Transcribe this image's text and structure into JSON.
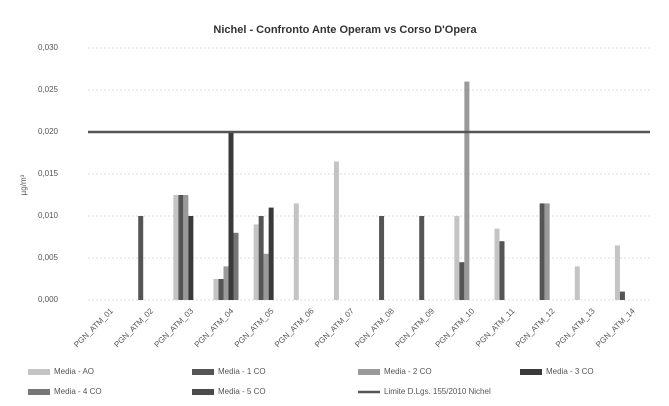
{
  "chart_data": {
    "type": "bar",
    "title": "Nichel - Confronto Ante Operam vs Corso D'Opera",
    "y_label": "µg/m³",
    "categories": [
      "PGN_ATM_01",
      "PGN_ATM_02",
      "PGN_ATM_03",
      "PGN_ATM_04",
      "PGN_ATM_05",
      "PGN_ATM_06",
      "PGN_ATM_07",
      "PGN_ATM_08",
      "PGN_ATM_09",
      "PGN_ATM_10",
      "PGN_ATM_11",
      "PGN_ATM_12",
      "PGN_ATM_13",
      "PGN_ATM_14"
    ],
    "series": [
      {
        "name": "Media - AO",
        "color": "#c4c4c4",
        "values": [
          null,
          null,
          0.0125,
          0.0025,
          0.009,
          0.0115,
          0.0165,
          null,
          null,
          0.01,
          0.0085,
          null,
          0.004,
          0.0065
        ]
      },
      {
        "name": "Media - 1 CO",
        "color": "#555555",
        "values": [
          null,
          0.01,
          0.0125,
          0.0025,
          0.01,
          null,
          null,
          0.01,
          0.01,
          0.0045,
          0.007,
          0.0115,
          null,
          0.001
        ]
      },
      {
        "name": "Media - 2 CO",
        "color": "#9a9a9a",
        "values": [
          null,
          null,
          0.0125,
          0.004,
          0.0055,
          null,
          null,
          null,
          null,
          0.026,
          null,
          0.0115,
          null,
          null
        ]
      },
      {
        "name": "Media - 3 CO",
        "color": "#3a3a3a",
        "values": [
          null,
          null,
          0.01,
          0.02,
          0.011,
          null,
          null,
          null,
          null,
          null,
          null,
          null,
          null,
          null
        ]
      },
      {
        "name": "Media - 4 CO",
        "color": "#777777",
        "values": [
          null,
          null,
          null,
          0.008,
          null,
          null,
          null,
          null,
          null,
          null,
          null,
          null,
          null,
          null
        ]
      },
      {
        "name": "Media - 5 CO",
        "color": "#4a4a4a",
        "values": [
          null,
          null,
          null,
          null,
          null,
          null,
          null,
          null,
          null,
          null,
          null,
          null,
          null,
          null
        ]
      }
    ],
    "limit": {
      "name": "Limite D.Lgs. 155/2010 Nichel",
      "color": "#555555",
      "values": [
        0.02,
        0.02,
        0.02,
        0.02,
        0.02,
        0.02,
        0.02,
        0.02,
        0.02,
        0.02,
        0.02,
        0.02,
        0.02,
        0.02
      ]
    },
    "ylim": [
      0,
      0.03
    ],
    "yticks": [
      {
        "value": 0,
        "label": "0,000"
      },
      {
        "value": 0.005,
        "label": "0,005"
      },
      {
        "value": 0.01,
        "label": "0,010"
      },
      {
        "value": 0.015,
        "label": "0,015"
      },
      {
        "value": 0.02,
        "label": "0,020"
      },
      {
        "value": 0.025,
        "label": "0,025"
      },
      {
        "value": 0.03,
        "label": "0,030"
      }
    ],
    "grid": true,
    "legend": "bottom"
  }
}
